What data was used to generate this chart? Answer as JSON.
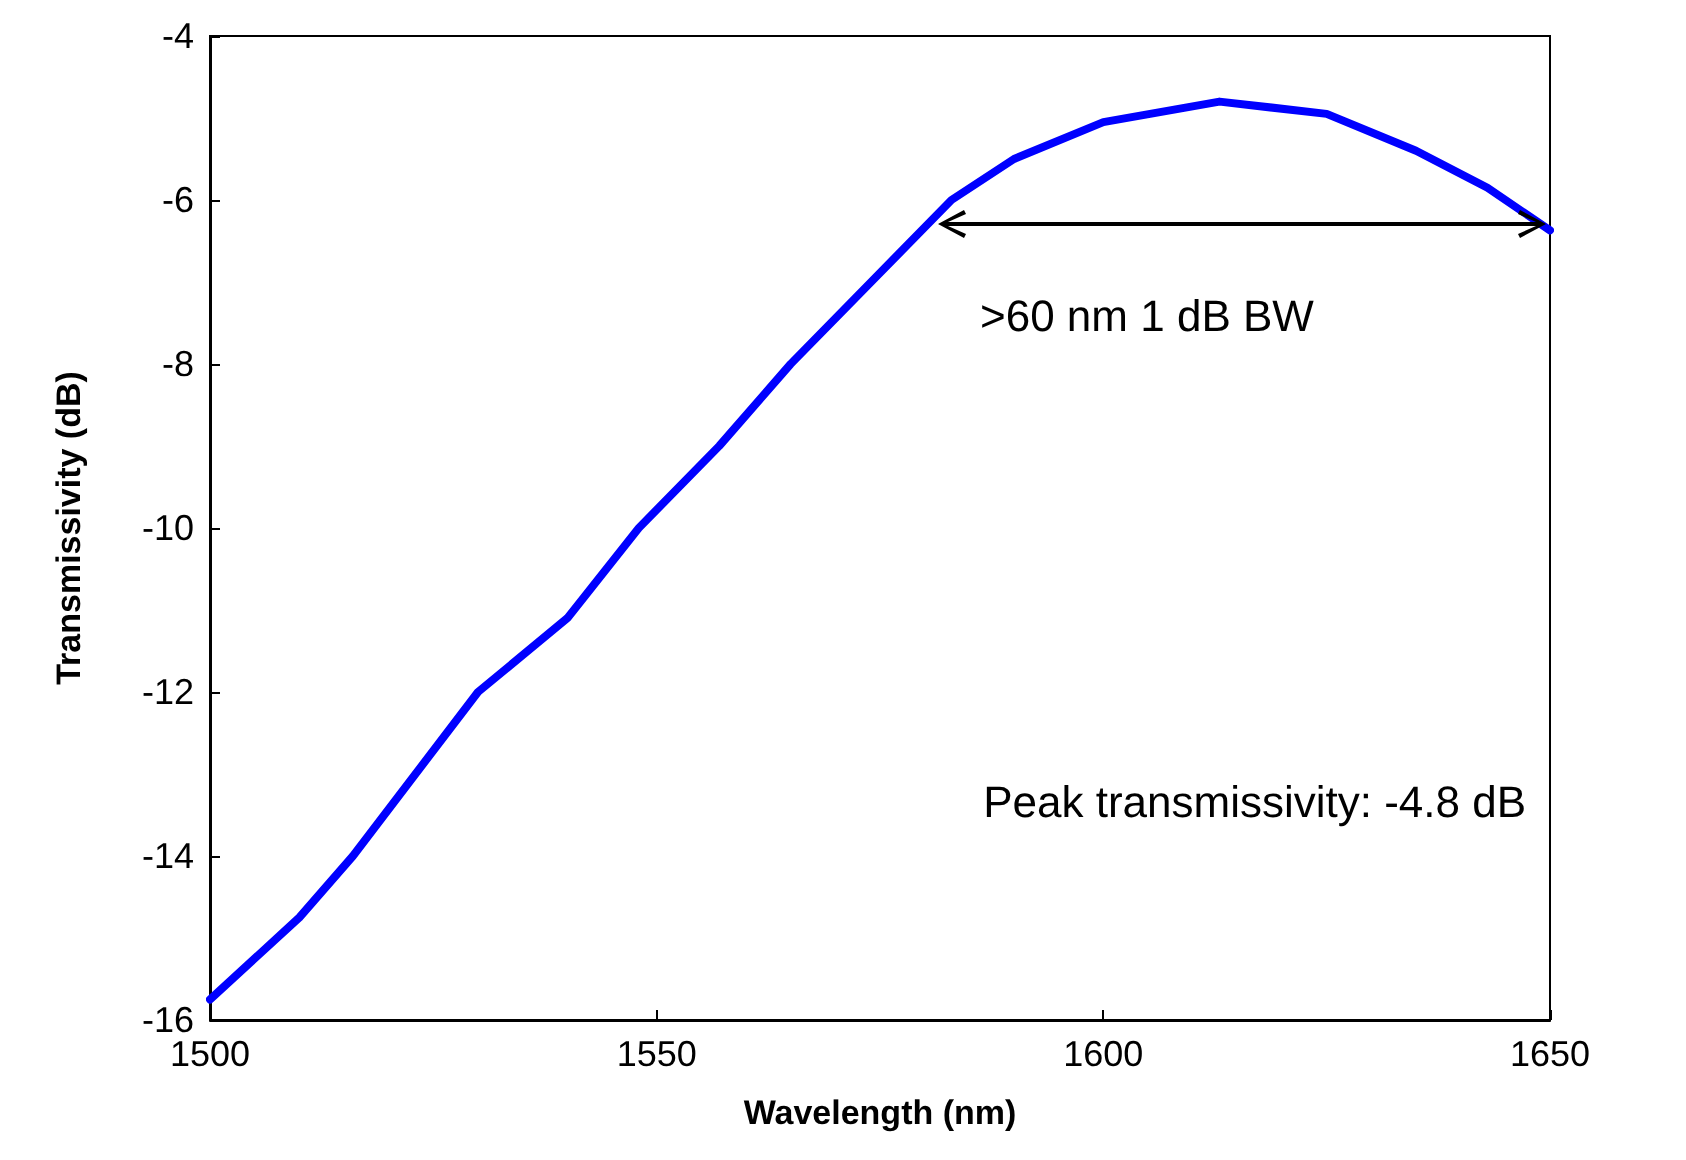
{
  "chart_data": {
    "type": "line",
    "xlabel": "Wavelength (nm)",
    "ylabel": "Transmissivity (dB)",
    "x": [
      1500,
      1510,
      1516,
      1530,
      1540,
      1548,
      1557,
      1565,
      1574,
      1583,
      1590,
      1600,
      1613,
      1625,
      1635,
      1643,
      1650
    ],
    "series": [
      {
        "color": "#0000ff",
        "values": [
          -15.75,
          -14.75,
          -14,
          -12,
          -11.1,
          -10,
          -9,
          -8,
          -7,
          -6,
          -5.5,
          -5.05,
          -4.8,
          -4.95,
          -5.4,
          -5.85,
          -6.37
        ]
      }
    ],
    "xlim": [
      1500,
      1650
    ],
    "xticks": [
      1500,
      1550,
      1600,
      1650
    ],
    "ylim": [
      -16,
      -4
    ],
    "yticks": [
      -16,
      -14,
      -12,
      -10,
      -8,
      -6,
      -4
    ],
    "grid": false,
    "marker": "none",
    "line_style": "solid",
    "annotations": [
      ">60 nm 1 dB BW",
      "Peak transmissivity: -4.8 dB"
    ]
  }
}
